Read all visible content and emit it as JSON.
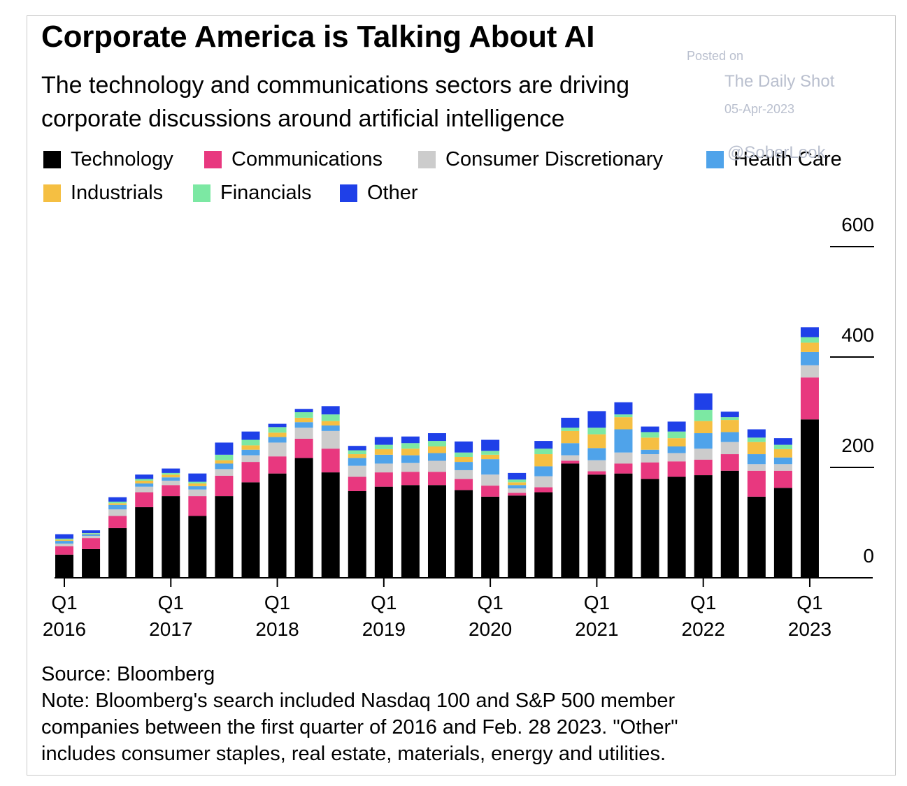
{
  "header": {
    "title": "Corporate America is Talking About AI",
    "subtitle_lines": [
      "The technology and communications sectors are driving",
      "corporate discussions around artificial intelligence"
    ]
  },
  "watermark": {
    "line1": "Posted on",
    "line2": "The Daily Shot",
    "line3": "05-Apr-2023",
    "line4": "@SoberLook"
  },
  "footer": {
    "source": "Source: Bloomberg",
    "note_lines": [
      "Note: Bloomberg's search included Nasdaq 100 and S&P 500 member",
      "companies between the first quarter of 2016 and Feb. 28 2023. \"Other\"",
      "includes consumer staples, real estate, materials, energy and utilities."
    ]
  },
  "chart_data": {
    "type": "bar",
    "stacked": true,
    "title": "Corporate America is Talking About AI",
    "xlabel": "",
    "ylabel": "",
    "ylim": [
      0,
      600
    ],
    "y_ticks": [
      0,
      200,
      400,
      600
    ],
    "y_axis_side": "right",
    "grid": false,
    "legend_placement": "top-left",
    "categories": [
      "Q1 2016",
      "Q2 2016",
      "Q3 2016",
      "Q4 2016",
      "Q1 2017",
      "Q2 2017",
      "Q3 2017",
      "Q4 2017",
      "Q1 2018",
      "Q2 2018",
      "Q3 2018",
      "Q4 2018",
      "Q1 2019",
      "Q2 2019",
      "Q3 2019",
      "Q4 2019",
      "Q1 2020",
      "Q2 2020",
      "Q3 2020",
      "Q4 2020",
      "Q1 2021",
      "Q2 2021",
      "Q3 2021",
      "Q4 2021",
      "Q1 2022",
      "Q2 2022",
      "Q3 2022",
      "Q4 2022",
      "Q1 2023"
    ],
    "x_tick_labels": [
      {
        "index": 0,
        "line1": "Q1",
        "line2": "2016"
      },
      {
        "index": 4,
        "line1": "Q1",
        "line2": "2017"
      },
      {
        "index": 8,
        "line1": "Q1",
        "line2": "2018"
      },
      {
        "index": 12,
        "line1": "Q1",
        "line2": "2019"
      },
      {
        "index": 16,
        "line1": "Q1",
        "line2": "2020"
      },
      {
        "index": 20,
        "line1": "Q1",
        "line2": "2021"
      },
      {
        "index": 24,
        "line1": "Q1",
        "line2": "2022"
      },
      {
        "index": 28,
        "line1": "Q1",
        "line2": "2023"
      }
    ],
    "series": [
      {
        "name": "Technology",
        "color": "#000000",
        "values": [
          42,
          52,
          90,
          128,
          148,
          112,
          148,
          173,
          189,
          217,
          191,
          157,
          165,
          168,
          168,
          159,
          147,
          149,
          155,
          207,
          187,
          189,
          179,
          183,
          186,
          194,
          147,
          163,
          287
        ]
      },
      {
        "name": "Communications",
        "color": "#e8387f",
        "values": [
          15,
          20,
          22,
          27,
          20,
          36,
          37,
          37,
          31,
          35,
          43,
          26,
          26,
          24,
          24,
          20,
          20,
          5,
          9,
          5,
          6,
          18,
          30,
          28,
          28,
          30,
          47,
          31,
          76
        ]
      },
      {
        "name": "Consumer Discretionary",
        "color": "#cccccc",
        "values": [
          5,
          4,
          12,
          10,
          8,
          12,
          12,
          12,
          25,
          20,
          32,
          20,
          16,
          16,
          20,
          16,
          20,
          8,
          20,
          10,
          20,
          20,
          15,
          15,
          20,
          22,
          12,
          12,
          22
        ]
      },
      {
        "name": "Health Care",
        "color": "#4fa3ea",
        "values": [
          5,
          3,
          8,
          6,
          6,
          6,
          10,
          10,
          10,
          10,
          10,
          14,
          16,
          14,
          14,
          15,
          28,
          6,
          18,
          22,
          22,
          42,
          8,
          12,
          28,
          18,
          18,
          12,
          24
        ]
      },
      {
        "name": "Industrials",
        "color": "#f5bf42",
        "values": [
          2,
          1,
          3,
          5,
          5,
          5,
          6,
          8,
          8,
          8,
          8,
          7,
          10,
          12,
          12,
          9,
          8,
          5,
          22,
          22,
          25,
          22,
          22,
          15,
          22,
          22,
          22,
          15,
          17
        ]
      },
      {
        "name": "Financials",
        "color": "#7ce8a3",
        "values": [
          2,
          1,
          3,
          3,
          3,
          3,
          10,
          10,
          10,
          10,
          12,
          7,
          8,
          10,
          10,
          8,
          7,
          5,
          10,
          6,
          12,
          5,
          10,
          12,
          20,
          5,
          8,
          8,
          10
        ]
      },
      {
        "name": "Other",
        "color": "#1f40e8",
        "values": [
          8,
          5,
          8,
          8,
          8,
          15,
          22,
          15,
          6,
          6,
          15,
          8,
          14,
          12,
          14,
          20,
          20,
          12,
          14,
          18,
          30,
          22,
          10,
          18,
          30,
          10,
          15,
          12,
          18
        ]
      }
    ]
  }
}
